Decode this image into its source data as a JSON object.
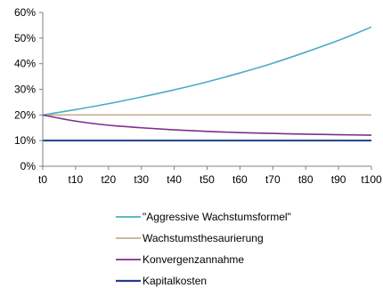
{
  "chart_data": {
    "type": "line",
    "x": [
      "t0",
      "t10",
      "t20",
      "t30",
      "t40",
      "t50",
      "t60",
      "t70",
      "t80",
      "t90",
      "t100"
    ],
    "ylim": [
      0,
      60
    ],
    "y_ticks": [
      "0%",
      "10%",
      "20%",
      "30%",
      "40%",
      "50%",
      "60%"
    ],
    "y_tick_values": [
      0,
      10,
      20,
      30,
      40,
      50,
      60
    ],
    "grid": false,
    "legend_position": "bottom",
    "series": [
      {
        "name": "\"Aggressive Wachstumsformel\"",
        "color": "#4bacc6",
        "values": [
          20,
          22.1,
          24.4,
          27.0,
          29.8,
          32.9,
          36.4,
          40.2,
          44.5,
          49.1,
          54.3
        ]
      },
      {
        "name": "Wachstumsthesaurierung",
        "color": "#c4b08e",
        "values": [
          20,
          20,
          20,
          20,
          20,
          20,
          20,
          20,
          20,
          20,
          20
        ]
      },
      {
        "name": "Konvergenzannahme",
        "color": "#7f2d8c",
        "values": [
          20,
          17.6,
          16.0,
          15.0,
          14.2,
          13.6,
          13.1,
          12.8,
          12.5,
          12.3,
          12.1
        ]
      },
      {
        "name": "Kapitalkosten",
        "color": "#1f3f86",
        "values": [
          10,
          10,
          10,
          10,
          10,
          10,
          10,
          10,
          10,
          10,
          10
        ]
      }
    ]
  }
}
